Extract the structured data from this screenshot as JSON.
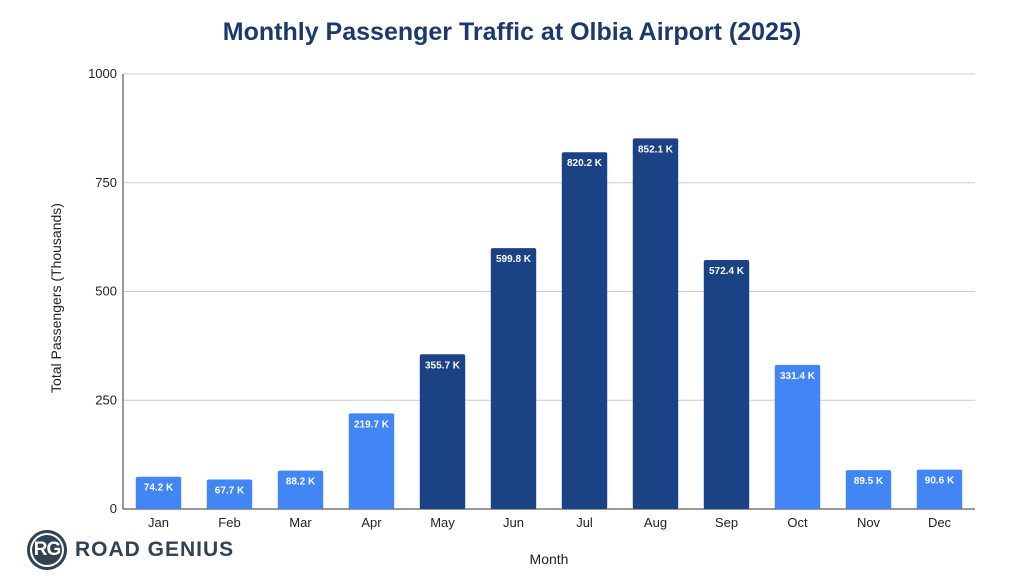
{
  "colors": {
    "light": "#4285f4",
    "dark": "#1c4286",
    "grid": "#cccccc",
    "title": "#1b3a6b"
  },
  "chart_data": {
    "type": "bar",
    "title": "Monthly Passenger Traffic at Olbia Airport (2025)",
    "xlabel": "Month",
    "ylabel": "Total Passengers (Thousands)",
    "ylim": [
      0,
      1000
    ],
    "yticks": [
      0,
      250,
      500,
      750,
      1000
    ],
    "grid": true,
    "categories": [
      "Jan",
      "Feb",
      "Mar",
      "Apr",
      "May",
      "Jun",
      "Jul",
      "Aug",
      "Sep",
      "Oct",
      "Nov",
      "Dec"
    ],
    "values": [
      74.2,
      67.7,
      88.2,
      219.7,
      355.7,
      599.8,
      820.2,
      852.1,
      572.4,
      331.4,
      89.5,
      90.6
    ],
    "labels": [
      "74.2 K",
      "67.7 K",
      "88.2 K",
      "219.7 K",
      "355.7 K",
      "599.8 K",
      "820.2 K",
      "852.1 K",
      "572.4 K",
      "331.4 K",
      "89.5 K",
      "90.6 K"
    ],
    "bar_shade": [
      "light",
      "light",
      "light",
      "light",
      "dark",
      "dark",
      "dark",
      "dark",
      "dark",
      "light",
      "light",
      "light"
    ]
  },
  "logo": {
    "badge": "RG",
    "text": "ROAD GENIUS"
  }
}
